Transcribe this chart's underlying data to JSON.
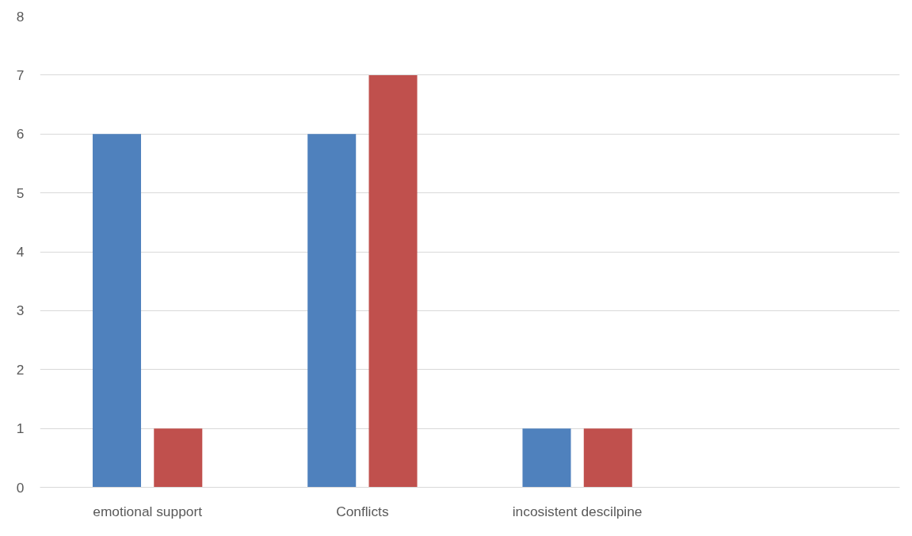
{
  "chart_data": {
    "type": "bar",
    "categories": [
      "emotional support",
      "Conflicts",
      "incosistent descilpine",
      null
    ],
    "series": [
      {
        "color": "#4f81bd",
        "values": [
          6,
          6,
          1,
          null
        ]
      },
      {
        "color": "#c0504d",
        "values": [
          1,
          7,
          1,
          null
        ]
      }
    ],
    "ylim": [
      0,
      8
    ],
    "yticks": [
      0,
      1,
      2,
      3,
      4,
      5,
      6,
      7,
      8
    ],
    "grid": "y"
  }
}
